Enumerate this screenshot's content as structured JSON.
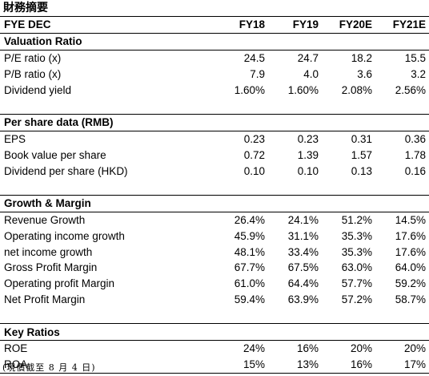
{
  "title": "財務摘要",
  "header": {
    "label": "FYE DEC",
    "years": [
      "FY18",
      "FY19",
      "FY20E",
      "FY21E"
    ]
  },
  "sections": [
    {
      "name": "Valuation Ratio",
      "rows": [
        {
          "label": "P/E ratio (x)",
          "values": [
            "24.5",
            "24.7",
            "18.2",
            "15.5"
          ]
        },
        {
          "label": "P/B ratio (x)",
          "values": [
            "7.9",
            "4.0",
            "3.6",
            "3.2"
          ]
        },
        {
          "label": "Dividend yield",
          "values": [
            "1.60%",
            "1.60%",
            "2.08%",
            "2.56%"
          ]
        }
      ]
    },
    {
      "name": "Per share data (RMB)",
      "rows": [
        {
          "label": "EPS",
          "values": [
            "0.23",
            "0.23",
            "0.31",
            "0.36"
          ]
        },
        {
          "label": "Book value per share",
          "values": [
            "0.72",
            "1.39",
            "1.57",
            "1.78"
          ]
        },
        {
          "label": "Dividend per share (HKD)",
          "values": [
            "0.10",
            "0.10",
            "0.13",
            "0.16"
          ]
        }
      ]
    },
    {
      "name": "Growth & Margin",
      "rows": [
        {
          "label": "Revenue Growth",
          "values": [
            "26.4%",
            "24.1%",
            "51.2%",
            "14.5%"
          ]
        },
        {
          "label": "Operating income growth",
          "values": [
            "45.9%",
            "31.1%",
            "35.3%",
            "17.6%"
          ]
        },
        {
          "label": "net income growth",
          "values": [
            "48.1%",
            "33.4%",
            "35.3%",
            "17.6%"
          ]
        },
        {
          "label": "Gross Profit Margin",
          "values": [
            "67.7%",
            "67.5%",
            "63.0%",
            "64.0%"
          ]
        },
        {
          "label": "Operating profit Margin",
          "values": [
            "61.0%",
            "64.4%",
            "57.7%",
            "59.2%"
          ]
        },
        {
          "label": "Net Profit Margin",
          "values": [
            "59.4%",
            "63.9%",
            "57.2%",
            "58.7%"
          ]
        }
      ]
    },
    {
      "name": "Key Ratios",
      "rows": [
        {
          "label": "ROE",
          "values": [
            "24%",
            "16%",
            "20%",
            "20%"
          ]
        },
        {
          "label": "ROA",
          "values": [
            "15%",
            "13%",
            "16%",
            "17%"
          ]
        }
      ]
    }
  ],
  "footnote": "(現價截至 8 月 4 日)"
}
